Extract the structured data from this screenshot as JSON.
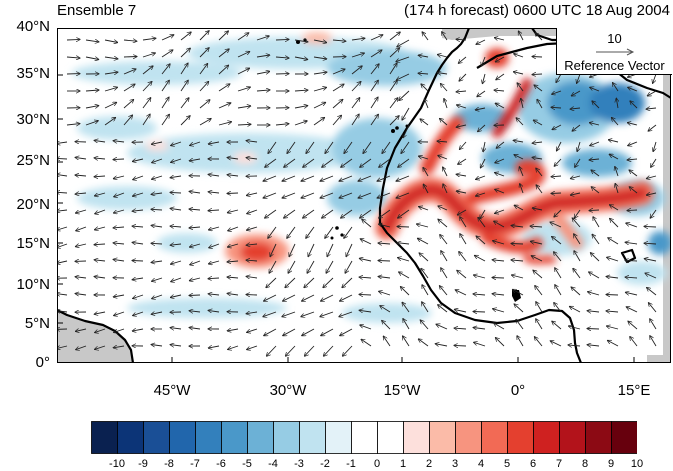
{
  "panel": {
    "title_left": "Ensemble 7",
    "title_right": "(174 h forecast) 0600 UTC 18 Aug 2004"
  },
  "axes": {
    "lat_ticks": [
      "40°N",
      "35°N",
      "30°N",
      "25°N",
      "20°N",
      "15°N",
      "10°N",
      "5°N",
      "0°"
    ],
    "lon_ticks": [
      "45°W",
      "30°W",
      "15°W",
      "0°",
      "15°E"
    ]
  },
  "reference_vector": {
    "magnitude": "10",
    "label": "Reference Vector"
  },
  "colorbar": {
    "labels": [
      "-10",
      "-9",
      "-8",
      "-7",
      "-6",
      "-5",
      "-4",
      "-3",
      "-2",
      "-1",
      "0",
      "1",
      "2",
      "3",
      "4",
      "5",
      "6",
      "7",
      "8",
      "9",
      "10"
    ],
    "colors": [
      "#0a2150",
      "#0c3477",
      "#1a4f96",
      "#2166ac",
      "#3380bc",
      "#4a98c9",
      "#6cb1d6",
      "#96cce4",
      "#c0e3f0",
      "#e3f2f8",
      "#ffffff",
      "#ffffff",
      "#fde0dc",
      "#fbbba8",
      "#f7947f",
      "#f26a55",
      "#e4402f",
      "#cf2120",
      "#b3131b",
      "#8c0a14",
      "#67000d"
    ]
  },
  "map_style": {
    "land_mask_color": "#c8c8c8",
    "coast_color": "#000000",
    "vector_color": "#222222"
  }
}
